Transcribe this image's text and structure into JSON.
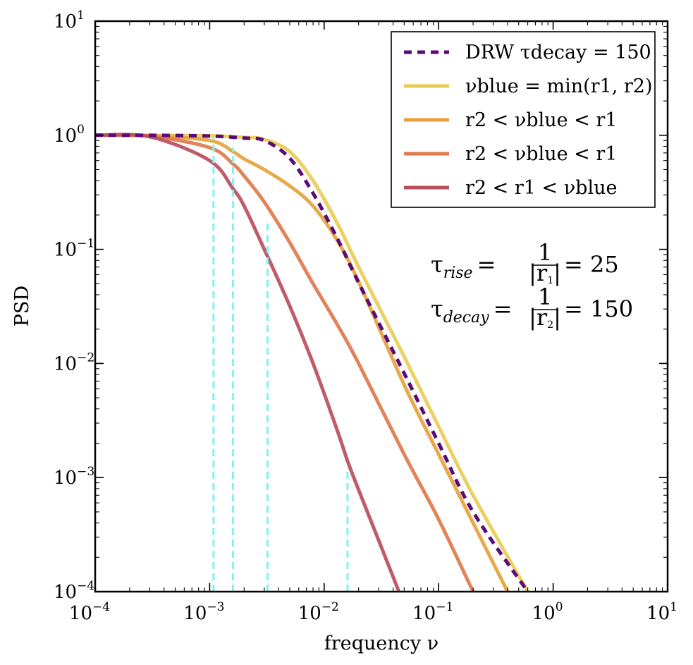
{
  "chart_data": {
    "type": "line",
    "xlabel": "frequency ν",
    "ylabel": "PSD",
    "xscale": "log",
    "yscale": "log",
    "xlim": [
      0.0001,
      10
    ],
    "ylim": [
      0.0001,
      10
    ],
    "x_ticks": [
      {
        "base": "10",
        "exp": "−4"
      },
      {
        "base": "10",
        "exp": "−3"
      },
      {
        "base": "10",
        "exp": "−2"
      },
      {
        "base": "10",
        "exp": "−1"
      },
      {
        "base": "10",
        "exp": "0"
      },
      {
        "base": "10",
        "exp": "1"
      }
    ],
    "y_ticks": [
      {
        "base": "10",
        "exp": "−4"
      },
      {
        "base": "10",
        "exp": "−3"
      },
      {
        "base": "10",
        "exp": "−2"
      },
      {
        "base": "10",
        "exp": "−1"
      },
      {
        "base": "10",
        "exp": "0"
      },
      {
        "base": "10",
        "exp": "1"
      }
    ],
    "grid": false,
    "legend_position": "top-right",
    "series": [
      {
        "name": "DRW τdecay = 150",
        "color": "#5b0a7a",
        "dash": true,
        "x": [
          0.0001,
          0.0003,
          0.001,
          0.002,
          0.003,
          0.005,
          0.008,
          0.013,
          0.02,
          0.05,
          0.1,
          0.2,
          0.6
        ],
        "y": [
          1.0,
          0.998,
          0.985,
          0.945,
          0.9,
          0.63,
          0.31,
          0.125,
          0.051,
          0.0082,
          0.002,
          0.0005,
          0.0001
        ]
      },
      {
        "name": "νblue = min(r1, r2)",
        "color": "#e9cc55",
        "dash": false,
        "x": [
          0.0001,
          0.0003,
          0.001,
          0.002,
          0.003,
          0.005,
          0.008,
          0.013,
          0.02,
          0.05,
          0.1,
          0.2,
          0.6
        ],
        "y": [
          1.0,
          0.998,
          0.99,
          0.96,
          0.92,
          0.72,
          0.4,
          0.17,
          0.07,
          0.0115,
          0.0028,
          0.0007,
          0.0001
        ]
      },
      {
        "name": "r2 < νblue < r1",
        "color": "#e6a23c",
        "dash": false,
        "x": [
          0.0001,
          0.0003,
          0.001,
          0.0016,
          0.002,
          0.003,
          0.005,
          0.008,
          0.013,
          0.02,
          0.05,
          0.1,
          0.2,
          0.4
        ],
        "y": [
          1.0,
          0.99,
          0.9,
          0.72,
          0.62,
          0.5,
          0.36,
          0.24,
          0.12,
          0.052,
          0.0065,
          0.0016,
          0.0004,
          0.0001
        ]
      },
      {
        "name": "r2 < νblue < r1",
        "color": "#de7a4c",
        "dash": false,
        "x": [
          0.0001,
          0.0003,
          0.001,
          0.0016,
          0.002,
          0.003,
          0.005,
          0.008,
          0.013,
          0.02,
          0.05,
          0.1,
          0.2
        ],
        "y": [
          1.0,
          0.98,
          0.78,
          0.56,
          0.44,
          0.26,
          0.115,
          0.05,
          0.022,
          0.01,
          0.0016,
          0.00043,
          0.0001
        ]
      },
      {
        "name": "r2 < r1 < νblue",
        "color": "#b84e5c",
        "dash": false,
        "x": [
          0.0001,
          0.0003,
          0.001,
          0.0016,
          0.002,
          0.003,
          0.005,
          0.008,
          0.013,
          0.016,
          0.02,
          0.03,
          0.045
        ],
        "y": [
          1.0,
          0.97,
          0.6,
          0.34,
          0.24,
          0.1,
          0.032,
          0.01,
          0.0026,
          0.0014,
          0.00078,
          0.00028,
          0.0001
        ]
      }
    ],
    "vertical_lines": {
      "color": "#7ff3f3",
      "segments": [
        {
          "x": 0.00108,
          "y_top": 0.95
        },
        {
          "x": 0.0016,
          "y_top": 0.78
        },
        {
          "x": 0.0032,
          "y_top": 0.17
        },
        {
          "x": 0.016,
          "y_top": 0.0012
        }
      ]
    },
    "annotations": {
      "rise": {
        "lhs": "τ",
        "lhs_sub": "rise",
        "eq": "=",
        "num": "1",
        "den": "|r",
        "den_sub": "1",
        "den_close": "|",
        "rhs": "= 25"
      },
      "decay": {
        "lhs": "τ",
        "lhs_sub": "decay",
        "eq": "=",
        "num": "1",
        "den": "|r",
        "den_sub": "2",
        "den_close": "|",
        "rhs": "= 150"
      }
    }
  }
}
